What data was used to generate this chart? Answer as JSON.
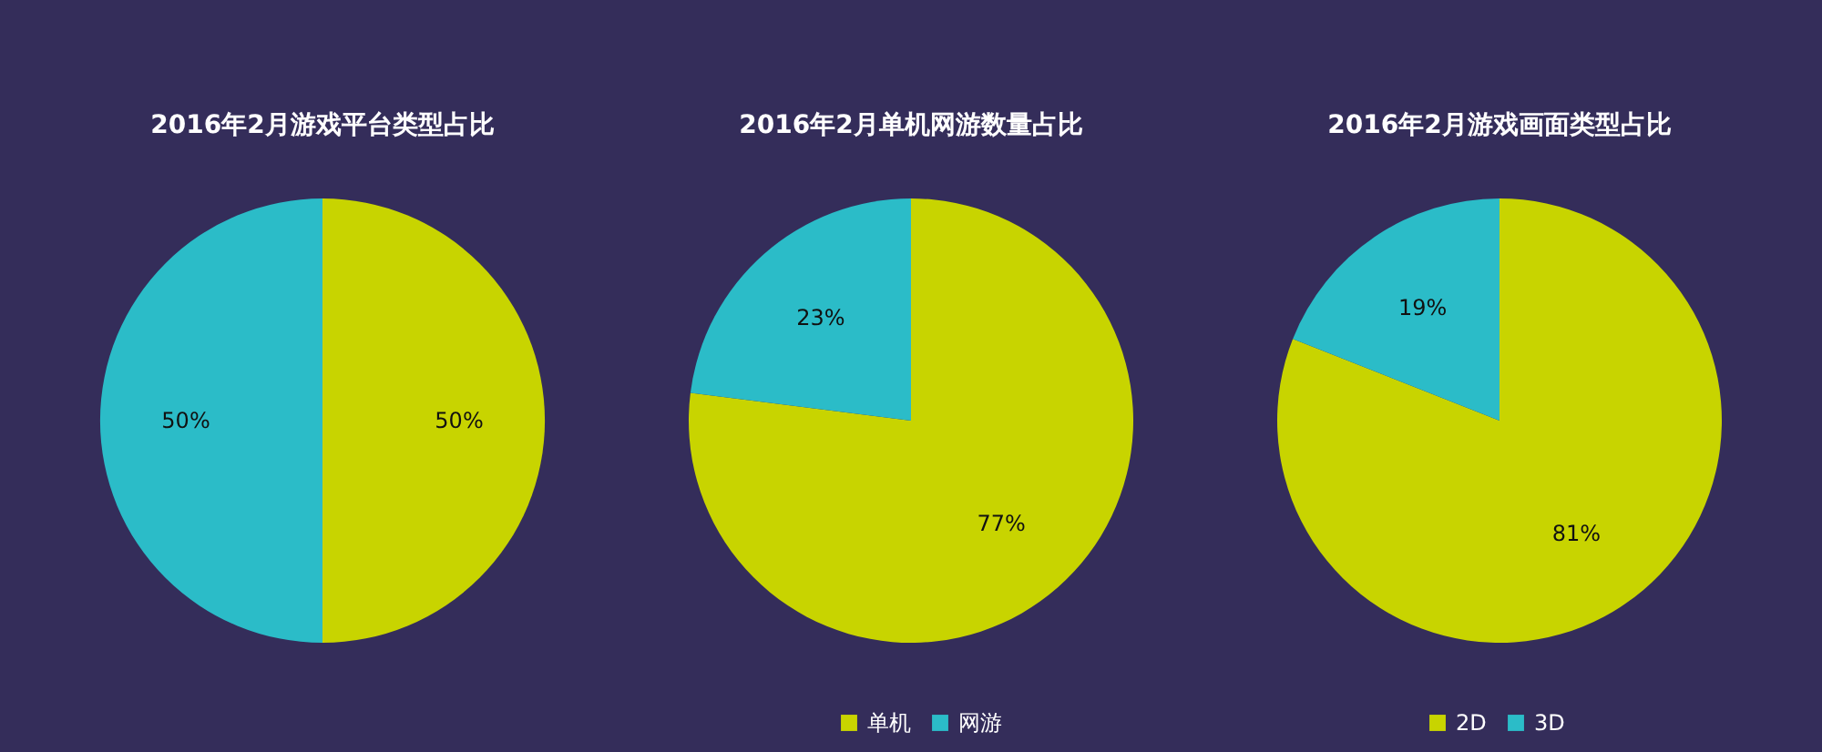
{
  "chart_data": [
    {
      "type": "pie",
      "title": "2016年2月游戏平台类型占比",
      "categories": [
        null,
        null
      ],
      "values": [
        50,
        50
      ],
      "value_labels": [
        "50%",
        "50%"
      ],
      "colors": [
        "#c8d400",
        "#2bbcc8"
      ]
    },
    {
      "type": "pie",
      "title": "2016年2月单机网游数量占比",
      "categories": [
        "单机",
        "网游"
      ],
      "values": [
        77,
        23
      ],
      "value_labels": [
        "77%",
        "23%"
      ],
      "colors": [
        "#c8d400",
        "#2bbcc8"
      ],
      "legend": "bottom"
    },
    {
      "type": "pie",
      "title": "2016年2月游戏画面类型占比",
      "categories": [
        "2D",
        "3D"
      ],
      "values": [
        81,
        19
      ],
      "value_labels": [
        "81%",
        "19%"
      ],
      "colors": [
        "#c8d400",
        "#2bbcc8"
      ],
      "legend": "bottom"
    }
  ]
}
